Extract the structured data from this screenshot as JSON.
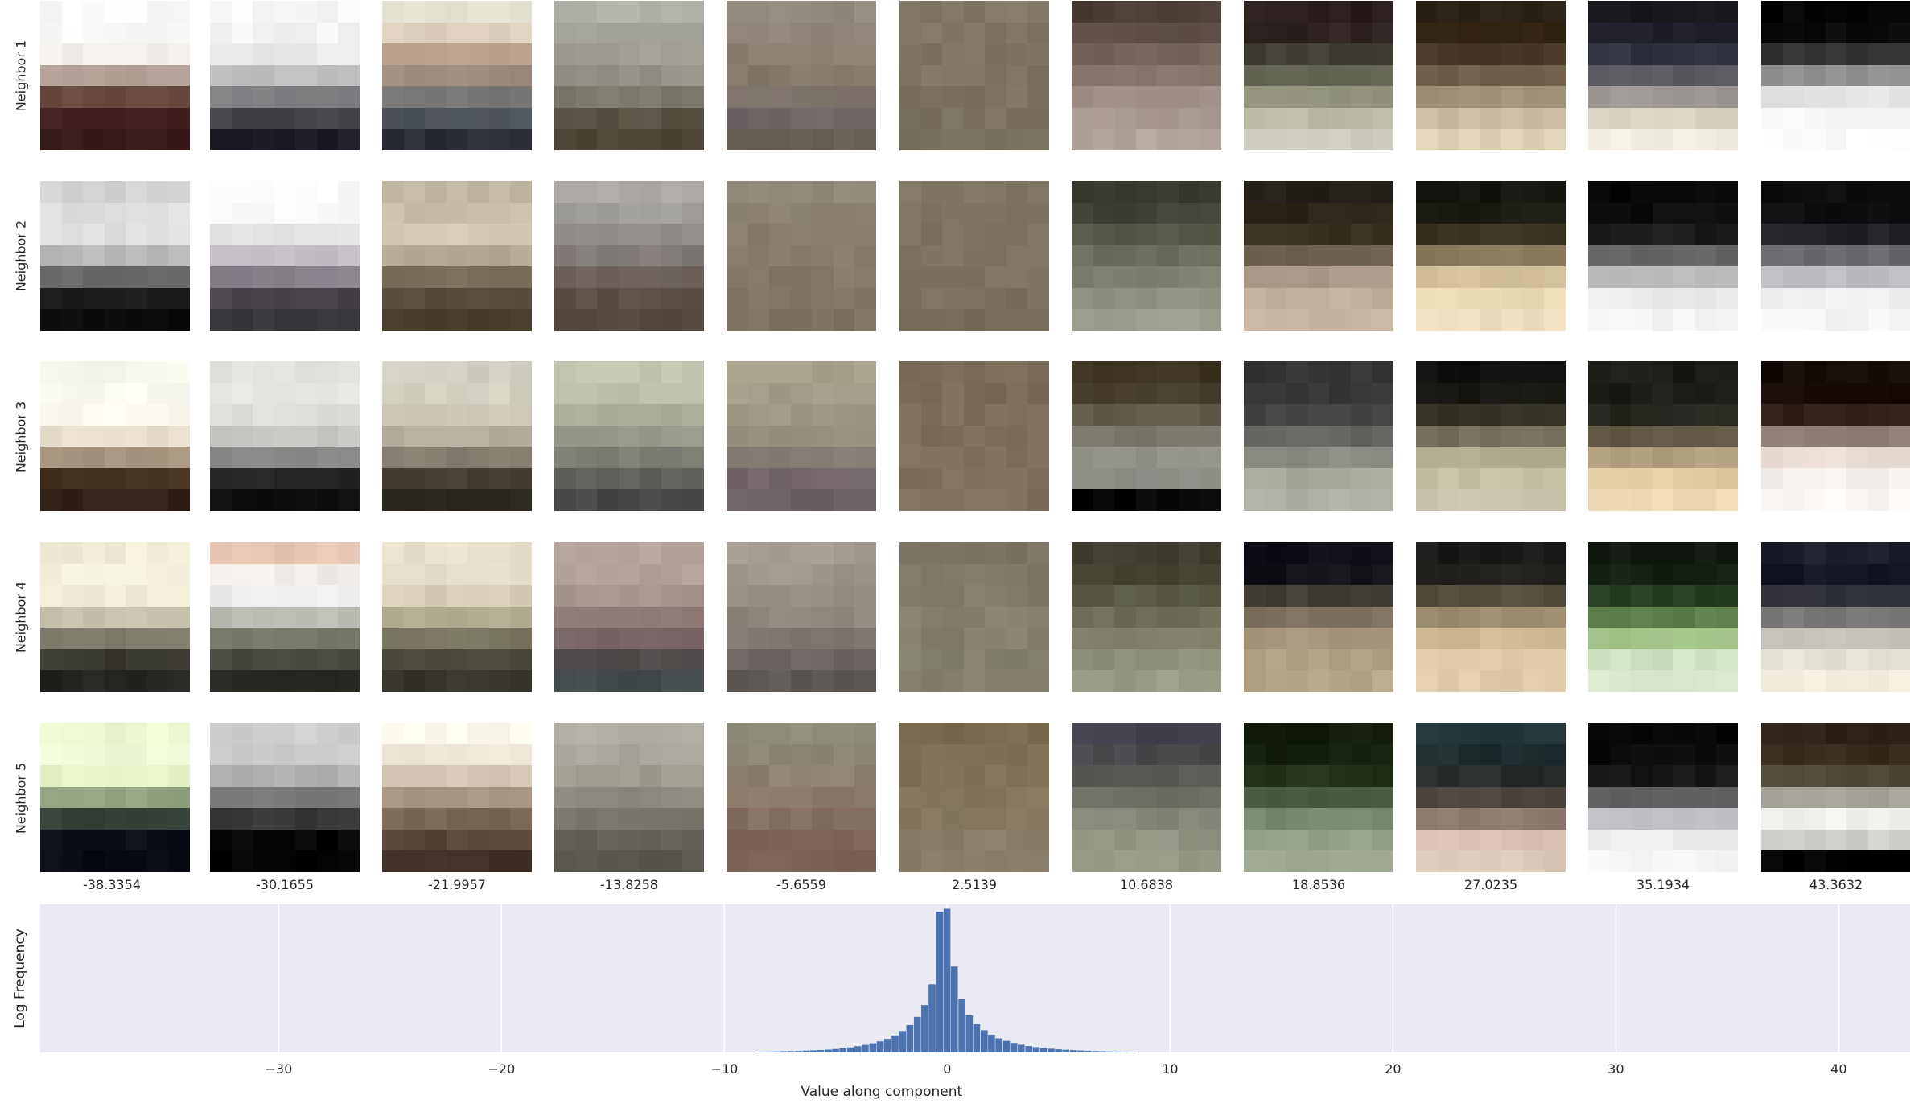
{
  "figure": {
    "row_labels": [
      "Neighbor 1",
      "Neighbor 2",
      "Neighbor 3",
      "Neighbor 4",
      "Neighbor 5"
    ],
    "column_values": [
      "-38.3354",
      "-30.1655",
      "-21.9957",
      "-13.8258",
      "-5.6559",
      "2.5139",
      "10.6838",
      "18.8536",
      "27.0235",
      "35.1934",
      "43.3632"
    ],
    "tile_colors": [
      [
        [
          "#fafaf9",
          "#fafaf8",
          "#f1ece6",
          "#7b5b50",
          "#492527",
          "#361a1c"
        ],
        [
          "#f7f7f7",
          "#f3f3f3",
          "#e2e2e2",
          "#9e9ea0",
          "#4a4a50",
          "#1e1e26"
        ],
        [
          "#e8e4d6",
          "#d9cbb8",
          "#b3957d",
          "#8b8480",
          "#535a60",
          "#2a2d33"
        ],
        [
          "#b4b3ab",
          "#a6a59c",
          "#9d9b92",
          "#8d8a80",
          "#5e584c",
          "#4a4234"
        ],
        [
          "#948b80",
          "#8e8378",
          "#8a7d71",
          "#7e7468",
          "#6f6668",
          "#6a6258"
        ],
        [
          "#817869",
          "#7f7667",
          "#7e7565",
          "#7c7363",
          "#7a7161",
          "#787060"
        ],
        [
          "#4a3d35",
          "#5e5048",
          "#7a6c62",
          "#95877e",
          "#a69890",
          "#b3a69f"
        ],
        [
          "#2a1e1c",
          "#2f2522",
          "#4a4c40",
          "#7b7c66",
          "#b9b8a3",
          "#cfcdc2"
        ],
        [
          "#2e251a",
          "#2d2010",
          "#544430",
          "#8d7d65",
          "#c6b9a0",
          "#ddd2b8"
        ],
        [
          "#16161b",
          "#1d1e28",
          "#3a3c4a",
          "#7c7878",
          "#d8d1c3",
          "#f0ebe0"
        ],
        [
          "#060606",
          "#080808",
          "#4a4a4a",
          "#d8d8d8",
          "#f6f6f6",
          "#fafafa"
        ]
      ],
      [
        [
          "#d4d4d4",
          "#e1e1e1",
          "#e0e0e0",
          "#909090",
          "#1e1e1e",
          "#0a0a0a"
        ],
        [
          "#fbfbfb",
          "#f5f5f7",
          "#e0dbe0",
          "#a49ca6",
          "#4c464e",
          "#38353a"
        ],
        [
          "#c0b8a0",
          "#cbc2aa",
          "#d8cfb8",
          "#8a7f66",
          "#5c5240",
          "#453c2c"
        ],
        [
          "#aaa7a5",
          "#9e9c98",
          "#8c8886",
          "#756c66",
          "#5e524a",
          "#52463e"
        ],
        [
          "#8f8779",
          "#8b8273",
          "#877e6f",
          "#847b6c",
          "#7f7667",
          "#7a7162"
        ],
        [
          "#7e7662",
          "#7c7460",
          "#7b735f",
          "#7a725e",
          "#79715d",
          "#78705c"
        ],
        [
          "#363a2e",
          "#42463a",
          "#5c6050",
          "#777a6a",
          "#8d8e80",
          "#9d9d90"
        ],
        [
          "#221c16",
          "#2a2418",
          "#3e3626",
          "#9e8e7e",
          "#bfaf98",
          "#c4b4a0"
        ],
        [
          "#14150f",
          "#1b1d14",
          "#4a3e28",
          "#c8b48c",
          "#e8d8b0",
          "#ecdcbb"
        ],
        [
          "#0a0a0c",
          "#0d0d10",
          "#222224",
          "#a4a4a6",
          "#e8e8e8",
          "#f4f4f4"
        ],
        [
          "#0a0c0e",
          "#0d0f11",
          "#2a2c30",
          "#a4a5aa",
          "#ededf0",
          "#f5f5f8"
        ]
      ],
      [
        [
          "#f6f6ec",
          "#faf9f2",
          "#f8f6ec",
          "#d4c4ac",
          "#4b3420",
          "#32221a"
        ],
        [
          "#e0e0dc",
          "#e6e6e2",
          "#d8d8d4",
          "#b4b4b2",
          "#2a2a2c",
          "#0e0e10"
        ],
        [
          "#d0cec2",
          "#d6d2c4",
          "#c8c2b2",
          "#a29c8e",
          "#4a4238",
          "#2a241e"
        ],
        [
          "#c4c6b4",
          "#babcaa",
          "#a4a694",
          "#8a8c80",
          "#646460",
          "#48484a"
        ],
        [
          "#a6a28a",
          "#a09c86",
          "#9a9484",
          "#8e887c",
          "#74686a",
          "#6a6066"
        ],
        [
          "#7a6e58",
          "#7a6e58",
          "#7b6f59",
          "#7c705a",
          "#7d715b",
          "#7d715c"
        ],
        [
          "#3e3424",
          "#4a4232",
          "#6a6658",
          "#8a8a80",
          "#a6a69e",
          "#060606"
        ],
        [
          "#363636",
          "#363636",
          "#4a4a4a",
          "#7e7e78",
          "#a6a69a",
          "#b0b0a6"
        ],
        [
          "#121110",
          "#1a1914",
          "#3e3c2e",
          "#a8a286",
          "#c4bea2",
          "#cac4aa"
        ],
        [
          "#1a1d16",
          "#1c1f18",
          "#2a2a22",
          "#98886a",
          "#e0caa0",
          "#ecd8b0"
        ],
        [
          "#140a06",
          "#1a0e08",
          "#3a2a22",
          "#e0d2c8",
          "#f6f0ec",
          "#faf6f4"
        ]
      ],
      [
        [
          "#f0ecd8",
          "#f6f2e0",
          "#eee8d0",
          "#9e9a88",
          "#3e3c34",
          "#242420"
        ],
        [
          "#e8c8b4",
          "#f4f4f4",
          "#eaeaea",
          "#8a8c7c",
          "#4a4c42",
          "#2a2a24"
        ],
        [
          "#e6e0cc",
          "#e2dcc6",
          "#d2caae",
          "#8e8a6e",
          "#4e4c3e",
          "#36342c"
        ],
        [
          "#b2a29a",
          "#b0a098",
          "#9e8c86",
          "#8a6e70",
          "#524c4a",
          "#40484a"
        ],
        [
          "#a49c90",
          "#9c9488",
          "#928a80",
          "#8a8278",
          "#6e6662",
          "#5e5854"
        ],
        [
          "#7e7668",
          "#817969",
          "#847c6c",
          "#867e6e",
          "#84806e",
          "#858070"
        ],
        [
          "#3e3c2e",
          "#4a4838",
          "#60604e",
          "#7a7a66",
          "#8e8e7c",
          "#9a9a88"
        ],
        [
          "#0c0c14",
          "#14141a",
          "#5a5246",
          "#9e9078",
          "#ae9e82",
          "#b6a688"
        ],
        [
          "#1a1a18",
          "#262420",
          "#6e6450",
          "#c8b48e",
          "#dcc8a4",
          "#e0ccaa"
        ],
        [
          "#101810",
          "#142014",
          "#2e4a2a",
          "#8ab46e",
          "#cce0bc",
          "#dde8d2"
        ],
        [
          "#1a1e28",
          "#121620",
          "#3a3a40",
          "#b8b4ae",
          "#e4e0d6",
          "#f2ecde"
        ]
      ],
      [
        [
          "#ecf8d0",
          "#f0fad8",
          "#dcecb8",
          "#4a5a48",
          "#0c1018",
          "#080a12"
        ],
        [
          "#d0d0d2",
          "#c8c8ca",
          "#a4a4a4",
          "#505050",
          "#060606",
          "#040404"
        ],
        [
          "#fcf8ec",
          "#eee6d8",
          "#c8b8a4",
          "#8a7460",
          "#5e4a3c",
          "#3e3026"
        ],
        [
          "#b2b0a6",
          "#a8a69c",
          "#9a968c",
          "#7e7a72",
          "#66625c",
          "#5a5650"
        ],
        [
          "#8e8c7c",
          "#8c8678",
          "#8a7e70",
          "#887464",
          "#7e6656",
          "#7a6254"
        ],
        [
          "#786a4e",
          "#7c6e52",
          "#807458",
          "#84795e",
          "#877d64",
          "#8a806a"
        ],
        [
          "#40404a",
          "#4a4a4c",
          "#5e5e58",
          "#7e7e72",
          "#929284",
          "#989888"
        ],
        [
          "#121a0c",
          "#16200e",
          "#2a3a22",
          "#6a7a62",
          "#94a08a",
          "#a0aa96"
        ],
        [
          "#24363a",
          "#1e2a2c",
          "#2e2e2c",
          "#6a5a52",
          "#d8c0b4",
          "#dccab8"
        ],
        [
          "#08080a",
          "#0a0a0c",
          "#1e1e20",
          "#a6a6aa",
          "#ececef",
          "#f6f6f8"
        ],
        [
          "#2c2218",
          "#3a2e22",
          "#5a5648",
          "#eeeeea",
          "#f8f8f4",
          "#020202"
        ]
      ]
    ]
  },
  "chart_data": {
    "type": "bar",
    "xlabel": "Value along component",
    "ylabel": "Log Frequency",
    "xlim": [
      -40.7,
      43.2
    ],
    "ylim": [
      0,
      1
    ],
    "xticks": [
      "−30",
      "−20",
      "−10",
      "0",
      "10",
      "20",
      "30",
      "40"
    ],
    "xtick_values": [
      -30,
      -20,
      -10,
      0,
      10,
      20,
      30,
      40
    ],
    "grid": true,
    "bar_color": "#4c72b0",
    "background_color": "#eaeaf2",
    "bin_width": 0.333,
    "x": [
      -8.33,
      -8.0,
      -7.67,
      -7.33,
      -7.0,
      -6.67,
      -6.33,
      -6.0,
      -5.67,
      -5.33,
      -5.0,
      -4.67,
      -4.33,
      -4.0,
      -3.67,
      -3.33,
      -3.0,
      -2.67,
      -2.33,
      -2.0,
      -1.67,
      -1.33,
      -1.0,
      -0.67,
      -0.33,
      0.0,
      0.33,
      0.67,
      1.0,
      1.33,
      1.67,
      2.0,
      2.33,
      2.67,
      3.0,
      3.33,
      3.67,
      4.0,
      4.33,
      4.67,
      5.0,
      5.33,
      5.67,
      6.0,
      6.33,
      6.67,
      7.0,
      7.33,
      7.67,
      8.0,
      8.33
    ],
    "values": [
      0.005,
      0.006,
      0.007,
      0.008,
      0.009,
      0.01,
      0.012,
      0.014,
      0.016,
      0.019,
      0.023,
      0.028,
      0.034,
      0.042,
      0.051,
      0.062,
      0.075,
      0.092,
      0.115,
      0.145,
      0.185,
      0.24,
      0.32,
      0.46,
      0.95,
      0.97,
      0.58,
      0.36,
      0.25,
      0.19,
      0.15,
      0.12,
      0.095,
      0.078,
      0.064,
      0.052,
      0.043,
      0.036,
      0.03,
      0.025,
      0.021,
      0.018,
      0.015,
      0.013,
      0.011,
      0.009,
      0.008,
      0.007,
      0.006,
      0.005,
      0.004
    ]
  }
}
